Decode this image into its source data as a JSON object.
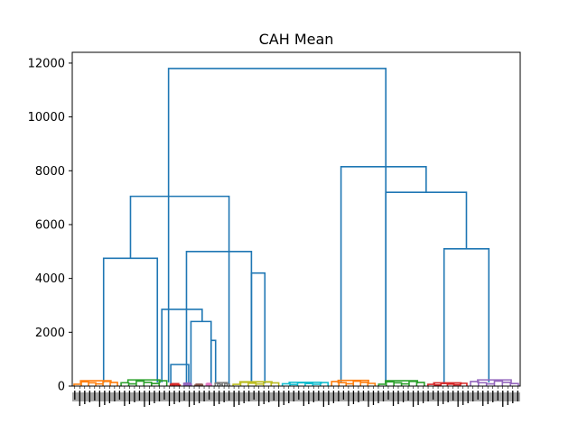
{
  "chart_data": {
    "type": "dendrogram",
    "title": "CAH Mean",
    "xlabel": "",
    "ylabel": "",
    "ylim": [
      0,
      12400
    ],
    "yticks": [
      0,
      2000,
      4000,
      6000,
      8000,
      10000,
      12000
    ],
    "ytick_labels": [
      "0",
      "2000",
      "4000",
      "6000",
      "8000",
      "10000",
      "12000"
    ],
    "grid": false,
    "above_threshold_color": "#1f77b4",
    "cluster_colors": [
      "#ff7f0e",
      "#2ca02c",
      "#d62728",
      "#9467bd",
      "#8c564b",
      "#e377c2",
      "#7f7f7f",
      "#bcbd22",
      "#17becf",
      "#ff7f0e",
      "#2ca02c",
      "#d62728",
      "#9467bd"
    ],
    "merges": [
      {
        "left": 0.07,
        "right": 0.19,
        "height": 4750
      },
      {
        "left": 0.22,
        "right": 0.26,
        "height": 800
      },
      {
        "left": 0.31,
        "right": 0.32,
        "height": 1700
      },
      {
        "left": 0.265,
        "right": 0.31,
        "height": 2400
      },
      {
        "left": 0.2,
        "right": 0.29,
        "height": 2850
      },
      {
        "left": 0.43,
        "right": 0.4,
        "height": 4200
      },
      {
        "left": 0.255,
        "right": 0.4,
        "height": 5000
      },
      {
        "left": 0.13,
        "right": 0.35,
        "height": 7050
      },
      {
        "left": 0.83,
        "right": 0.93,
        "height": 5100
      },
      {
        "left": 0.7,
        "right": 0.88,
        "height": 7200
      },
      {
        "left": 0.6,
        "right": 0.79,
        "height": 8150
      },
      {
        "left": 0.215,
        "right": 0.7,
        "height": 11800
      }
    ],
    "clusters": [
      {
        "start": 0.0,
        "end": 0.105,
        "height": 200,
        "color": "#ff7f0e"
      },
      {
        "start": 0.105,
        "end": 0.215,
        "height": 230,
        "color": "#2ca02c"
      },
      {
        "start": 0.215,
        "end": 0.245,
        "height": 90,
        "color": "#d62728"
      },
      {
        "start": 0.245,
        "end": 0.27,
        "height": 110,
        "color": "#9467bd"
      },
      {
        "start": 0.27,
        "end": 0.295,
        "height": 70,
        "color": "#8c564b"
      },
      {
        "start": 0.295,
        "end": 0.315,
        "height": 100,
        "color": "#e377c2"
      },
      {
        "start": 0.315,
        "end": 0.355,
        "height": 130,
        "color": "#7f7f7f"
      },
      {
        "start": 0.355,
        "end": 0.465,
        "height": 160,
        "color": "#bcbd22"
      },
      {
        "start": 0.465,
        "end": 0.575,
        "height": 140,
        "color": "#17becf"
      },
      {
        "start": 0.575,
        "end": 0.68,
        "height": 210,
        "color": "#ff7f0e"
      },
      {
        "start": 0.68,
        "end": 0.79,
        "height": 200,
        "color": "#2ca02c"
      },
      {
        "start": 0.79,
        "end": 0.885,
        "height": 120,
        "color": "#d62728"
      },
      {
        "start": 0.885,
        "end": 1.0,
        "height": 230,
        "color": "#9467bd"
      }
    ],
    "leaf_count": 90
  }
}
